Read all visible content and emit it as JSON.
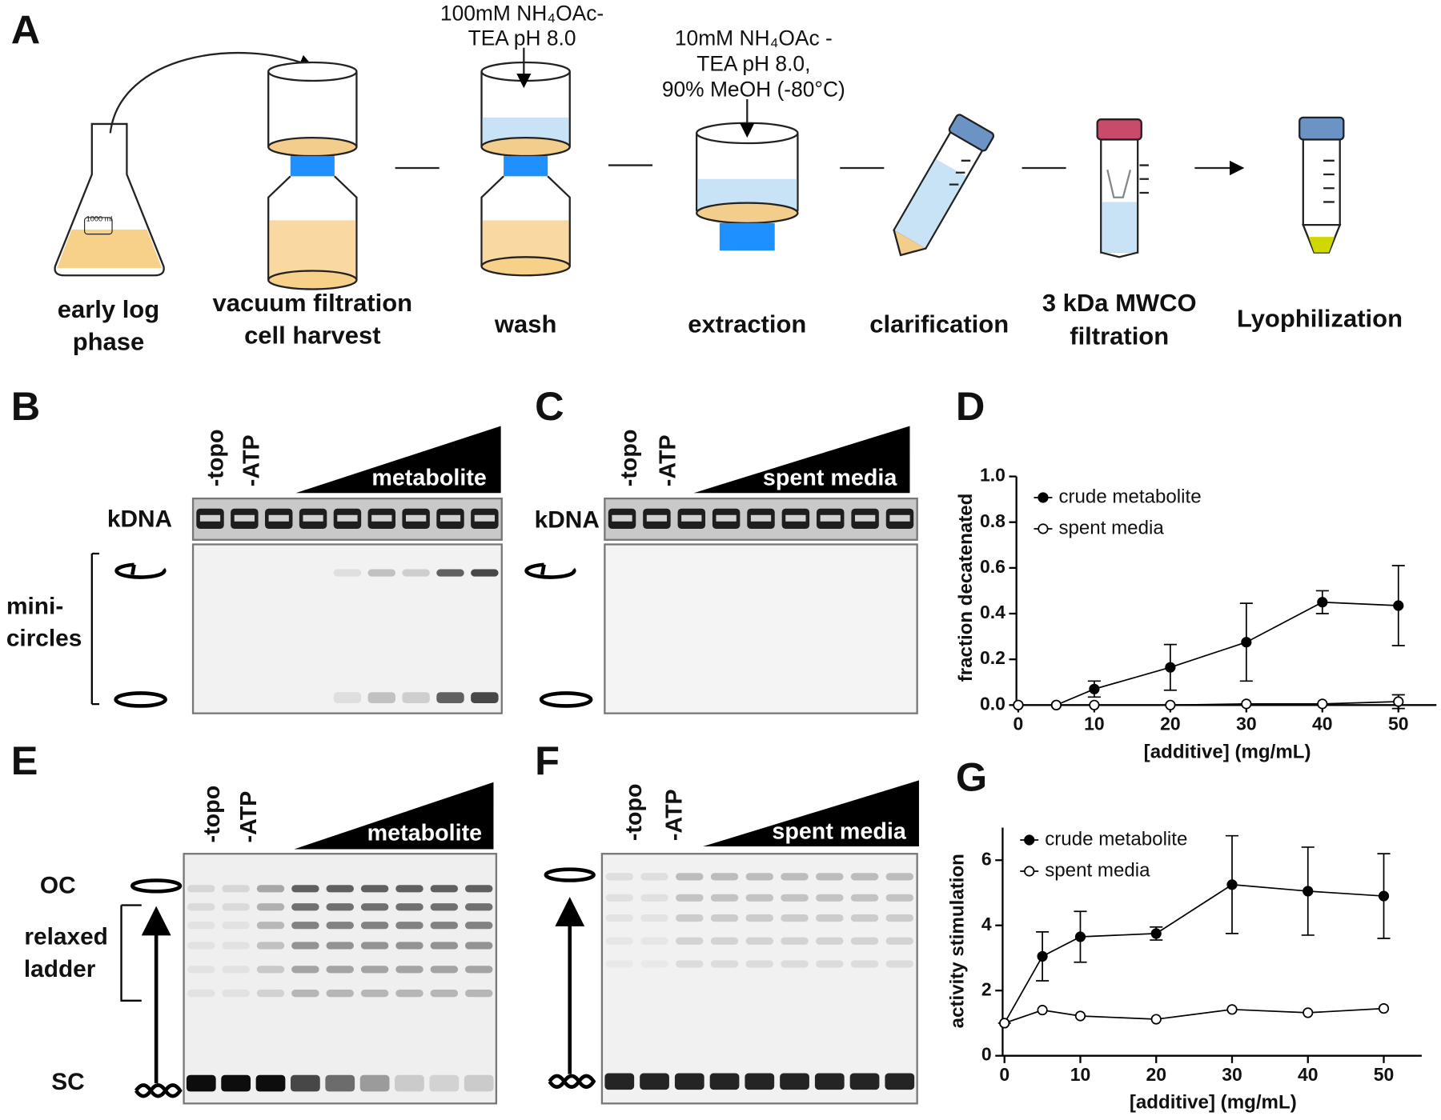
{
  "panel_labels": [
    "A",
    "B",
    "C",
    "D",
    "E",
    "F",
    "G"
  ],
  "workflow": {
    "steps": [
      [
        "early log",
        "phase"
      ],
      [
        "vacuum filtration",
        "cell harvest"
      ],
      [
        "wash"
      ],
      [
        "extraction"
      ],
      [
        "clarification"
      ],
      [
        "3 kDa MWCO",
        "filtration"
      ],
      [
        "Lyophilization"
      ]
    ],
    "reagents": [
      [
        "100mM NH₄OAc-",
        "TEA pH 8.0"
      ],
      [
        "10mM NH₄OAc -",
        "TEA pH 8.0,",
        "90% MeOH (-80°C)"
      ]
    ],
    "flask_label": "1000 ml"
  },
  "gels": {
    "B": {
      "lanes": [
        "-topo",
        "-ATP"
      ],
      "gradient": "metabolite",
      "well_label": "kDNA",
      "side_label": [
        "mini-",
        "circles"
      ]
    },
    "C": {
      "lanes": [
        "-topo",
        "-ATP"
      ],
      "gradient": "spent media",
      "well_label": "kDNA"
    },
    "E": {
      "lanes": [
        "-topo",
        "-ATP"
      ],
      "gradient": "metabolite",
      "oc_label": "OC",
      "ladder_label": [
        "relaxed",
        "ladder"
      ],
      "sc_label": "SC"
    },
    "F": {
      "lanes": [
        "-topo",
        "-ATP"
      ],
      "gradient": "spent media"
    }
  },
  "chart_data": [
    {
      "type": "line",
      "x_label": "[additive] (mg/mL)",
      "y_label": "fraction decatenated",
      "x": [
        0,
        5,
        10,
        20,
        30,
        40,
        50
      ],
      "xlim": [
        0,
        55
      ],
      "xticks": [
        0,
        10,
        20,
        30,
        40,
        50
      ],
      "ylim": [
        0,
        1
      ],
      "yticks": [
        {
          "value": 0,
          "label": "0.0"
        },
        0.2,
        0.4,
        0.6,
        0.8,
        {
          "value": 1,
          "label": "1.0"
        }
      ],
      "series": [
        {
          "name": "crude metabolite",
          "color": "#000000",
          "marker": "filled",
          "values": [
            0,
            0,
            0.07,
            0.165,
            0.275,
            0.45,
            0.435
          ],
          "errors": [
            0,
            0,
            0.035,
            0.1,
            0.17,
            0.05,
            0.175
          ]
        },
        {
          "name": "spent media",
          "color": "#000000",
          "marker": "open",
          "values": [
            0,
            0,
            0,
            0,
            0.005,
            0.005,
            0.015
          ],
          "errors": [
            0,
            0,
            0,
            0,
            0,
            0,
            0.03
          ]
        }
      ]
    },
    {
      "type": "line",
      "x_label": "[additive] (mg/mL)",
      "y_label": "activity stimulation",
      "x": [
        0,
        5,
        10,
        20,
        30,
        40,
        50
      ],
      "xlim": [
        0,
        55
      ],
      "xticks": [
        0,
        10,
        20,
        30,
        40,
        50
      ],
      "ylim": [
        0,
        7
      ],
      "yticks": [
        0,
        2,
        4,
        6
      ],
      "series": [
        {
          "name": "crude metabolite",
          "color": "#000000",
          "marker": "filled",
          "values": [
            1,
            3.05,
            3.65,
            3.75,
            5.25,
            5.05,
            4.9
          ],
          "errors": [
            0,
            0.75,
            0.78,
            0.2,
            1.5,
            1.35,
            1.3
          ]
        },
        {
          "name": "spent media",
          "color": "#000000",
          "marker": "open",
          "values": [
            1,
            1.4,
            1.22,
            1.12,
            1.42,
            1.32,
            1.45
          ]
        }
      ]
    }
  ]
}
